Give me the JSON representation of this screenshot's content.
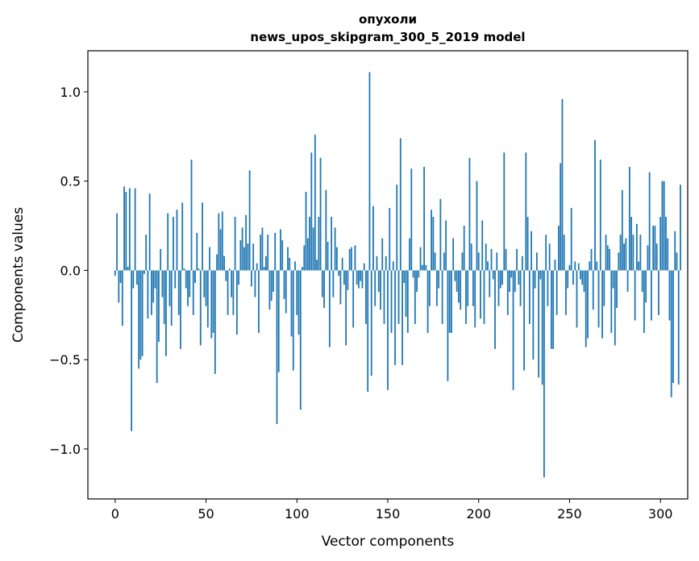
{
  "chart_data": {
    "type": "bar",
    "title": [
      "опухоли",
      "news_upos_skipgram_300_5_2019 model"
    ],
    "xlabel": "Vector components",
    "ylabel": "Components values",
    "xlim": [
      -15,
      315
    ],
    "ylim": [
      -1.28,
      1.23
    ],
    "xticks": [
      0,
      50,
      100,
      150,
      200,
      250,
      300
    ],
    "xtick_labels": [
      "0",
      "50",
      "100",
      "150",
      "200",
      "250",
      "300"
    ],
    "yticks": [
      -1.0,
      -0.5,
      0.0,
      0.5,
      1.0
    ],
    "ytick_labels": [
      "−1.0",
      "−0.5",
      "0.0",
      "0.5",
      "1.0"
    ],
    "grid": false,
    "bar_color": "#1f77b4",
    "values": [
      -0.03,
      0.32,
      -0.18,
      -0.07,
      -0.31,
      0.47,
      0.44,
      0.02,
      0.46,
      -0.9,
      -0.1,
      0.46,
      -0.08,
      -0.55,
      -0.5,
      -0.48,
      -0.02,
      0.2,
      -0.27,
      0.43,
      -0.25,
      -0.18,
      -0.1,
      -0.63,
      -0.4,
      0.12,
      -0.15,
      -0.3,
      -0.48,
      0.32,
      -0.2,
      -0.31,
      0.3,
      -0.1,
      0.34,
      -0.25,
      -0.44,
      0.38,
      0.01,
      -0.1,
      -0.2,
      -0.15,
      0.62,
      -0.25,
      -0.07,
      0.21,
      0.01,
      -0.42,
      0.38,
      -0.15,
      -0.2,
      -0.32,
      0.13,
      -0.38,
      -0.35,
      -0.58,
      0.09,
      0.32,
      0.23,
      0.33,
      0.08,
      -0.06,
      -0.25,
      0.01,
      -0.15,
      -0.25,
      0.3,
      -0.36,
      -0.08,
      0.17,
      0.24,
      0.13,
      0.31,
      0.15,
      0.56,
      -0.09,
      0.15,
      -0.15,
      0.04,
      -0.35,
      0.2,
      0.24,
      0.02,
      0.08,
      0.2,
      -0.22,
      -0.17,
      -0.12,
      0.21,
      -0.86,
      -0.57,
      0.23,
      0.17,
      -0.16,
      -0.24,
      0.13,
      0.07,
      -0.37,
      -0.56,
      0.05,
      -0.25,
      -0.36,
      -0.78,
      0.02,
      0.14,
      0.44,
      0.18,
      0.3,
      0.66,
      0.24,
      0.76,
      0.06,
      0.3,
      0.63,
      -0.15,
      -0.21,
      0.45,
      0.16,
      -0.43,
      0.3,
      -0.15,
      0.24,
      0.13,
      -0.03,
      -0.19,
      0.07,
      -0.08,
      -0.42,
      -0.11,
      0.12,
      0.13,
      -0.32,
      0.14,
      -0.08,
      -0.1,
      -0.06,
      -0.1,
      0.04,
      -0.3,
      -0.68,
      1.11,
      -0.59,
      0.36,
      -0.2,
      0.08,
      -0.12,
      -0.22,
      0.18,
      -0.3,
      0.08,
      -0.67,
      0.35,
      -0.35,
      0.05,
      -0.53,
      0.48,
      -0.3,
      0.74,
      -0.53,
      -0.07,
      -0.26,
      -0.35,
      0.18,
      0.57,
      -0.04,
      -0.3,
      -0.12,
      -0.04,
      0.13,
      0.03,
      0.58,
      0.03,
      -0.35,
      -0.2,
      0.34,
      0.3,
      0.1,
      -0.2,
      -0.1,
      0.4,
      -0.3,
      0.1,
      0.28,
      -0.62,
      -0.35,
      -0.35,
      0.18,
      -0.06,
      -0.12,
      -0.18,
      -0.22,
      0.1,
      0.25,
      -0.3,
      -0.2,
      0.63,
      0.15,
      -0.2,
      -0.32,
      0.5,
      0.1,
      -0.27,
      0.28,
      -0.3,
      0.15,
      0.05,
      -0.15,
      0.12,
      -0.05,
      -0.44,
      0.1,
      -0.2,
      -0.1,
      -0.08,
      0.66,
      0.12,
      -0.25,
      -0.12,
      -0.04,
      -0.67,
      -0.12,
      0.12,
      -0.08,
      -0.2,
      0.08,
      -0.56,
      0.66,
      0.3,
      -0.3,
      0.22,
      -0.5,
      -0.1,
      0.1,
      -0.6,
      -0.05,
      -0.64,
      -1.16,
      0.2,
      -0.2,
      0.15,
      -0.44,
      -0.44,
      0.06,
      -0.25,
      0.25,
      0.6,
      0.96,
      0.2,
      -0.25,
      -0.1,
      0.03,
      0.35,
      -0.08,
      0.05,
      -0.32,
      0.04,
      -0.05,
      -0.08,
      -0.12,
      -0.43,
      -0.38,
      0.05,
      0.12,
      -0.22,
      0.73,
      0.05,
      -0.32,
      0.62,
      -0.38,
      -0.2,
      0.2,
      0.14,
      0.12,
      -0.35,
      -0.1,
      -0.42,
      -0.21,
      0.1,
      0.2,
      0.45,
      0.15,
      0.18,
      -0.12,
      0.58,
      0.3,
      0.2,
      -0.28,
      0.26,
      0.05,
      0.2,
      -0.12,
      -0.35,
      -0.18,
      0.14,
      0.55,
      -0.28,
      0.25,
      0.25,
      0.15,
      -0.25,
      0.3,
      0.5,
      0.5,
      0.3,
      0.18,
      -0.28,
      -0.71,
      -0.63,
      0.22,
      0.1,
      -0.64,
      0.48
    ]
  }
}
